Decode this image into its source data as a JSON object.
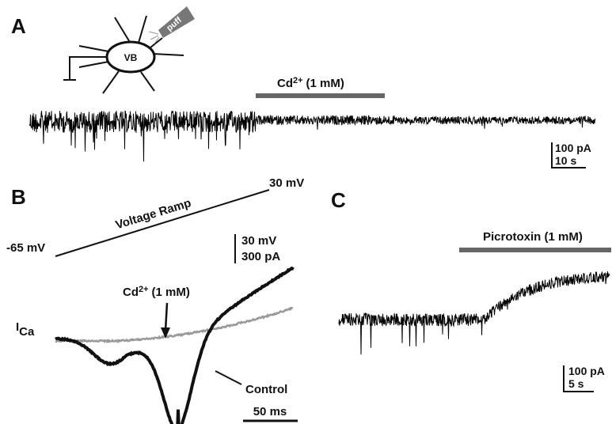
{
  "panel_a": {
    "label": "A",
    "cell_label": "VB",
    "pipette_label": "puff",
    "drug": {
      "name": "Cd",
      "superscript": "2+",
      "dose": "(1 mM)"
    },
    "scale_current": "100 pA",
    "scale_time": "10 s"
  },
  "panel_b": {
    "label": "B",
    "ramp_label": "Voltage Ramp",
    "start_voltage": "-65 mV",
    "end_voltage": "30 mV",
    "scale_voltage": "30 mV",
    "scale_current": "300 pA",
    "drug": {
      "name": "Cd",
      "superscript": "2+",
      "dose": "(1 mM)"
    },
    "current_label": {
      "name": "I",
      "subscript": "Ca"
    },
    "control_label": "Control",
    "scale_time": "50 ms"
  },
  "panel_c": {
    "label": "C",
    "drug": "Picrotoxin (1 mM)",
    "scale_current": "100 pA",
    "scale_time": "5 s"
  }
}
